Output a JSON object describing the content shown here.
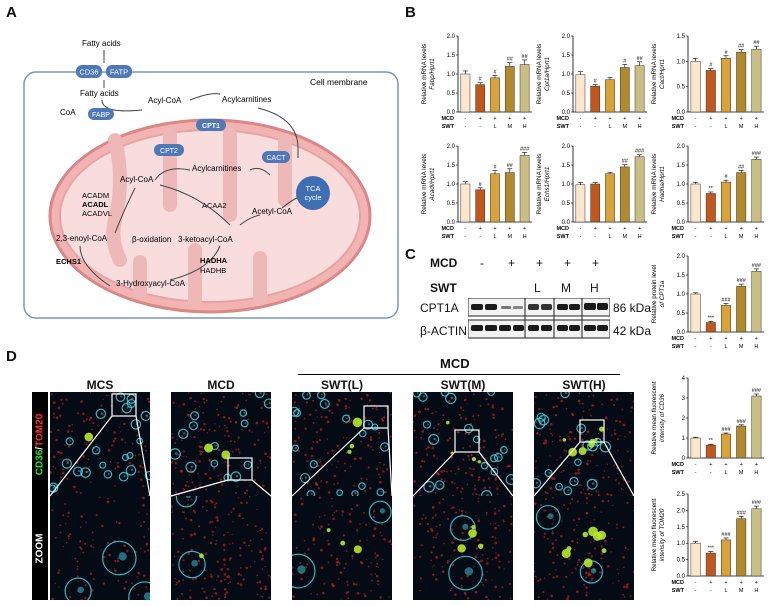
{
  "panels": {
    "A": "A",
    "B": "B",
    "C": "C",
    "D": "D"
  },
  "pathway": {
    "fatty_acids_top": "Fatty acids",
    "cd36": "CD36",
    "fatp": "FATP",
    "cell_membrane": "Cell membrane",
    "fatty_acids_inner": "Fatty acids",
    "coa": "CoA",
    "fabp": "FABP",
    "acyl_coa_top": "Acyl-CoA",
    "acylcarnitines_top": "Acylcarnitines",
    "cpt1": "CPT1",
    "cact": "CACT",
    "cpt2": "CPT2",
    "acylcarnitines_mito": "Acylcarnitines",
    "acyl_coa_mito": "Acyl-CoA",
    "acadm": "ACADM",
    "acadl": "ACADL",
    "acadvl": "ACADVL",
    "acaa2": "ACAA2",
    "tca": "TCA\ncycle",
    "tca_line1": "TCA",
    "tca_line2": "cycle",
    "acetyl_coa": "Acetyl-CoA",
    "enoyl": "2,3-enoyl-CoA",
    "beta_ox": "β-oxidation",
    "ketoacyl": "3-ketoacyl-CoA",
    "echs1": "ECHS1",
    "hadha": "HADHA",
    "hadhb": "HADHB",
    "hydroxyacyl": "3-Hydroxyacyl-CoA"
  },
  "group_rows": {
    "mcd_label": "MCD",
    "swt_label": "SWT",
    "mcd": [
      "-",
      "+",
      "+",
      "+",
      "+"
    ],
    "swt": [
      "-",
      "-",
      "L",
      "M",
      "H"
    ]
  },
  "colors": [
    "#fde6cc",
    "#c0571c",
    "#d9a33a",
    "#b08a2c",
    "#c9bf85"
  ],
  "chart_data": [
    {
      "id": "fabp",
      "type": "bar",
      "ylabel_line1": "Relative mRNA levels",
      "ylabel_line2": "Fabp/Hprt1",
      "ylim": [
        0,
        2.0
      ],
      "yticks": [
        "0.0",
        "0.5",
        "1.0",
        "1.5",
        "2.0"
      ],
      "values": [
        1.0,
        0.72,
        0.9,
        1.2,
        1.25
      ],
      "errors": [
        0.08,
        0.05,
        0.06,
        0.1,
        0.12
      ],
      "sig": [
        "",
        "#",
        "#",
        "##",
        "##"
      ]
    },
    {
      "id": "cpt1",
      "type": "bar",
      "ylabel_line1": "Relative mRNA levels",
      "ylabel_line2": "Cpt1a/Hprt1",
      "ylim": [
        0,
        2.0
      ],
      "yticks": [
        "0.0",
        "0.5",
        "1.0",
        "1.5",
        "2.0"
      ],
      "values": [
        0.98,
        0.68,
        0.85,
        1.17,
        1.22
      ],
      "errors": [
        0.08,
        0.04,
        0.06,
        0.08,
        0.1
      ],
      "sig": [
        "",
        "#",
        "",
        "#",
        "##"
      ]
    },
    {
      "id": "cact",
      "type": "bar",
      "ylabel_line1": "Relative mRNA levels",
      "ylabel_line2": "Cact/Hprt1",
      "ylim": [
        0,
        1.5
      ],
      "yticks": [
        "0.0",
        "0.5",
        "1.0",
        "1.5"
      ],
      "values": [
        1.0,
        0.82,
        1.06,
        1.18,
        1.24
      ],
      "errors": [
        0.06,
        0.04,
        0.05,
        0.05,
        0.06
      ],
      "sig": [
        "",
        "#",
        "#",
        "##",
        "##"
      ]
    },
    {
      "id": "acadl",
      "type": "bar",
      "ylabel_line1": "Relative mRNA levels",
      "ylabel_line2": "Acadl/Hprt1",
      "ylim": [
        0,
        2.0
      ],
      "yticks": [
        "0.0",
        "0.5",
        "1.0",
        "1.5",
        "2.0"
      ],
      "values": [
        1.0,
        0.85,
        1.27,
        1.3,
        1.75
      ],
      "errors": [
        0.06,
        0.05,
        0.08,
        0.1,
        0.08
      ],
      "sig": [
        "",
        "#",
        "#",
        "##",
        "###"
      ]
    },
    {
      "id": "echs",
      "type": "bar",
      "ylabel_line1": "Relative mRNA levels",
      "ylabel_line2": "Echs1/Hprt1",
      "ylim": [
        0,
        2.0
      ],
      "yticks": [
        "0.0",
        "0.5",
        "1.0",
        "1.5",
        "2.0"
      ],
      "values": [
        0.98,
        1.0,
        1.27,
        1.45,
        1.72
      ],
      "errors": [
        0.06,
        0.04,
        0.04,
        0.06,
        0.05
      ],
      "sig": [
        "",
        "",
        "",
        "##",
        "###"
      ]
    },
    {
      "id": "hadha",
      "type": "bar",
      "ylabel_line1": "Relative mRNA levels",
      "ylabel_line2": "Hadha/Hprt1",
      "ylim": [
        0,
        2.0
      ],
      "yticks": [
        "0.0",
        "0.5",
        "1.0",
        "1.5",
        "2.0"
      ],
      "values": [
        1.0,
        0.75,
        1.05,
        1.3,
        1.65
      ],
      "errors": [
        0.04,
        0.04,
        0.05,
        0.06,
        0.06
      ],
      "sig": [
        "",
        "**",
        "#",
        "##",
        "###"
      ]
    },
    {
      "id": "cpt1a_protein",
      "type": "bar",
      "ylabel_line1": "Relative protein level",
      "ylabel_line2": "of CPT1a",
      "ylim": [
        0,
        2.0
      ],
      "yticks": [
        "0.0",
        "0.5",
        "1.0",
        "1.5",
        "2.0"
      ],
      "values": [
        1.0,
        0.25,
        0.7,
        1.2,
        1.6
      ],
      "errors": [
        0.03,
        0.03,
        0.05,
        0.06,
        0.06
      ],
      "sig": [
        "",
        "***",
        "###",
        "###",
        "###"
      ]
    },
    {
      "id": "cd36_fluor",
      "type": "bar",
      "ylabel_line1": "Relative mean fluorescent",
      "ylabel_line2": "intensity of CD36",
      "ylim": [
        0,
        4
      ],
      "yticks": [
        "0",
        "1",
        "2",
        "3",
        "4"
      ],
      "values": [
        1.0,
        0.65,
        1.2,
        1.6,
        3.1
      ],
      "errors": [
        0.04,
        0.04,
        0.05,
        0.06,
        0.1
      ],
      "sig": [
        "",
        "**",
        "###",
        "###",
        "###"
      ]
    },
    {
      "id": "tom20_fluor",
      "type": "bar",
      "ylabel_line1": "Relative mean fluorescent",
      "ylabel_line2": "intensity of TOM20",
      "ylim": [
        0,
        2.5
      ],
      "yticks": [
        "0.0",
        "0.5",
        "1.0",
        "1.5",
        "2.0",
        "2.5"
      ],
      "values": [
        1.0,
        0.7,
        1.1,
        1.75,
        2.05
      ],
      "errors": [
        0.06,
        0.05,
        0.06,
        0.07,
        0.08
      ],
      "sig": [
        "",
        "***",
        "###",
        "###",
        "###"
      ]
    }
  ],
  "western": {
    "mcd_label": "MCD",
    "swt_label": "SWT",
    "mcd": [
      "-",
      "+",
      "+",
      "+",
      "+"
    ],
    "swt": [
      "",
      "",
      "L",
      "M",
      "H"
    ],
    "cpt1a_label": "CPT1A",
    "cpt1a_kda": "86 kDa",
    "actin_label": "β-ACTIN",
    "actin_kda": "42 kDa"
  },
  "micrographs": {
    "group_header": "MCD",
    "columns": [
      "MCS",
      "MCD",
      "SWT(L)",
      "SWT(M)",
      "SWT(H)"
    ],
    "row1_label_cd36": "CD36",
    "row1_label_sep": "/",
    "row1_label_tom20": "TOM20",
    "row2_label": "ZOOM"
  }
}
